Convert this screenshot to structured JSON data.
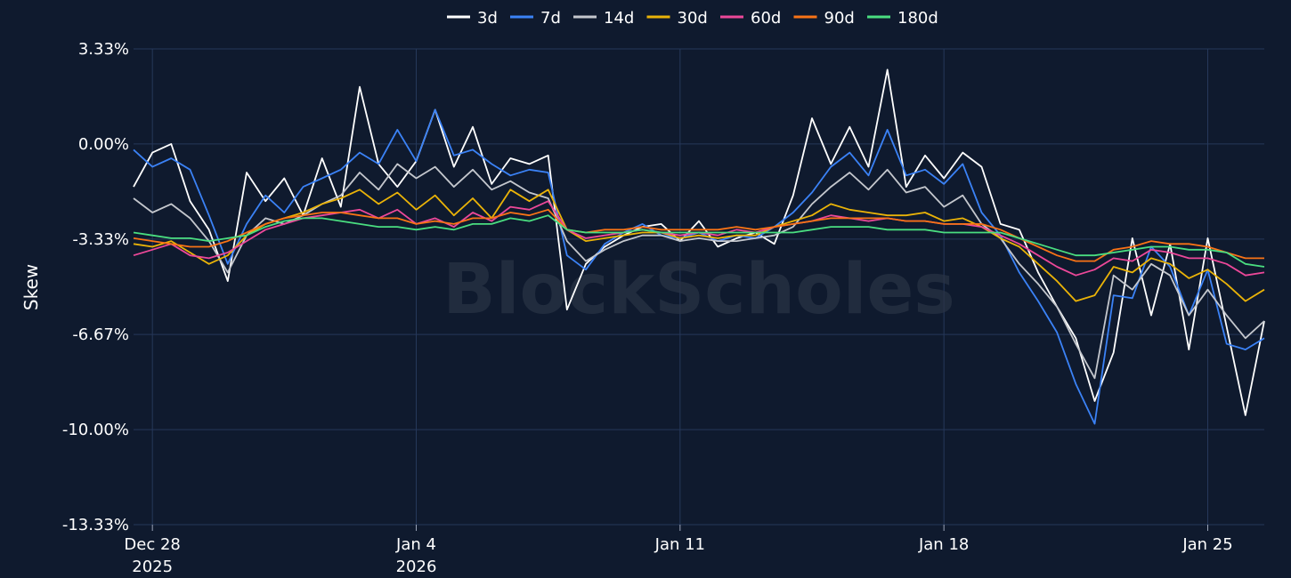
{
  "chart_data": {
    "type": "line",
    "title": "",
    "ylabel": "Skew",
    "xlabel": "",
    "watermark": "BlockScholes",
    "legend_position": "top-center",
    "grid": true,
    "ylim": [
      -13.33,
      3.33
    ],
    "y_ticks": [
      {
        "value": 3.33,
        "label": "3.33%"
      },
      {
        "value": 0,
        "label": "0.00%"
      },
      {
        "value": -3.33,
        "label": "-3.33%"
      },
      {
        "value": -6.67,
        "label": "-6.67%"
      },
      {
        "value": -10,
        "label": "-10.00%"
      },
      {
        "value": -13.33,
        "label": "-13.33%"
      }
    ],
    "xlim": [
      "2025-12-27T12:00",
      "2026-01-26T12:00"
    ],
    "x_ticks": [
      {
        "date": "2025-12-28",
        "label": "Dec 28",
        "sublabel": "2025"
      },
      {
        "date": "2026-01-04",
        "label": "Jan 4",
        "sublabel": "2026"
      },
      {
        "date": "2026-01-11",
        "label": "Jan 11",
        "sublabel": ""
      },
      {
        "date": "2026-01-18",
        "label": "Jan 18",
        "sublabel": ""
      },
      {
        "date": "2026-01-25",
        "label": "Jan 25",
        "sublabel": ""
      }
    ],
    "x": [
      "2025-12-27T12:00",
      "2025-12-28T00:00",
      "2025-12-28T12:00",
      "2025-12-29T00:00",
      "2025-12-29T12:00",
      "2025-12-30T00:00",
      "2025-12-30T12:00",
      "2025-12-31T00:00",
      "2025-12-31T12:00",
      "2026-01-01T00:00",
      "2026-01-01T12:00",
      "2026-01-02T00:00",
      "2026-01-02T12:00",
      "2026-01-03T00:00",
      "2026-01-03T12:00",
      "2026-01-04T00:00",
      "2026-01-04T12:00",
      "2026-01-05T00:00",
      "2026-01-05T12:00",
      "2026-01-06T00:00",
      "2026-01-06T12:00",
      "2026-01-07T00:00",
      "2026-01-07T12:00",
      "2026-01-08T00:00",
      "2026-01-08T12:00",
      "2026-01-09T00:00",
      "2026-01-09T12:00",
      "2026-01-10T00:00",
      "2026-01-10T12:00",
      "2026-01-11T00:00",
      "2026-01-11T12:00",
      "2026-01-12T00:00",
      "2026-01-12T12:00",
      "2026-01-13T00:00",
      "2026-01-13T12:00",
      "2026-01-14T00:00",
      "2026-01-14T12:00",
      "2026-01-15T00:00",
      "2026-01-15T12:00",
      "2026-01-16T00:00",
      "2026-01-16T12:00",
      "2026-01-17T00:00",
      "2026-01-17T12:00",
      "2026-01-18T00:00",
      "2026-01-18T12:00",
      "2026-01-19T00:00",
      "2026-01-19T12:00",
      "2026-01-20T00:00",
      "2026-01-20T12:00",
      "2026-01-21T00:00",
      "2026-01-21T12:00",
      "2026-01-22T00:00",
      "2026-01-22T12:00",
      "2026-01-23T00:00",
      "2026-01-23T12:00",
      "2026-01-24T00:00",
      "2026-01-24T12:00",
      "2026-01-25T00:00",
      "2026-01-25T12:00",
      "2026-01-26T00:00",
      "2026-01-26T12:00"
    ],
    "series": [
      {
        "name": "3d",
        "color": "#ffffff",
        "values": [
          -1.5,
          -0.3,
          0,
          -2,
          -3,
          -4.8,
          -1,
          -2,
          -1.2,
          -2.5,
          -0.5,
          -2.2,
          2,
          -0.7,
          -1.5,
          -0.6,
          1.2,
          -0.8,
          0.6,
          -1.4,
          -0.5,
          -0.7,
          -0.4,
          -5.8,
          -4.2,
          -3.6,
          -3.2,
          -2.9,
          -2.8,
          -3.4,
          -2.7,
          -3.6,
          -3.3,
          -3.1,
          -3.5,
          -1.8,
          0.9,
          -0.7,
          0.6,
          -0.8,
          2.6,
          -1.5,
          -0.4,
          -1.2,
          -0.3,
          -0.8,
          -2.8,
          -3,
          -4.5,
          -5.7,
          -6.8,
          -9,
          -7.3,
          -3.3,
          -6,
          -3.5,
          -7.2,
          -3.3,
          -6.4,
          -9.5,
          -6.2
        ]
      },
      {
        "name": "7d",
        "color": "#3b82f6",
        "values": [
          -0.2,
          -0.8,
          -0.5,
          -0.9,
          -2.5,
          -4.2,
          -2.8,
          -1.8,
          -2.4,
          -1.5,
          -1.2,
          -0.9,
          -0.3,
          -0.7,
          0.5,
          -0.6,
          1.2,
          -0.4,
          -0.2,
          -0.7,
          -1.1,
          -0.9,
          -1,
          -3.9,
          -4.4,
          -3.5,
          -3.1,
          -2.8,
          -3.2,
          -3.3,
          -3.1,
          -3.4,
          -3.2,
          -3.3,
          -2.9,
          -2.4,
          -1.7,
          -0.8,
          -0.3,
          -1.1,
          0.5,
          -1.1,
          -0.9,
          -1.4,
          -0.7,
          -2.4,
          -3.2,
          -4.5,
          -5.5,
          -6.6,
          -8.4,
          -9.8,
          -5.3,
          -5.4,
          -3.6,
          -4.3,
          -6,
          -4.4,
          -7,
          -7.2,
          -6.8
        ]
      },
      {
        "name": "14d",
        "color": "#c4c7cd",
        "values": [
          -1.9,
          -2.4,
          -2.1,
          -2.6,
          -3.4,
          -4.5,
          -3.2,
          -2.6,
          -2.8,
          -2.5,
          -2.1,
          -1.8,
          -1,
          -1.6,
          -0.7,
          -1.2,
          -0.8,
          -1.5,
          -0.9,
          -1.6,
          -1.3,
          -1.7,
          -1.9,
          -3.4,
          -4.1,
          -3.7,
          -3.4,
          -3.2,
          -3.2,
          -3.4,
          -3.3,
          -3.4,
          -3.4,
          -3.3,
          -3.2,
          -2.9,
          -2.1,
          -1.5,
          -1,
          -1.6,
          -0.9,
          -1.7,
          -1.5,
          -2.2,
          -1.8,
          -2.8,
          -3.3,
          -4.2,
          -4.9,
          -5.7,
          -7,
          -8.2,
          -4.6,
          -5.1,
          -4.2,
          -4.6,
          -6,
          -5.1,
          -6,
          -6.8,
          -6.2
        ]
      },
      {
        "name": "30d",
        "color": "#eab308",
        "values": [
          -3.5,
          -3.6,
          -3.4,
          -3.8,
          -4.2,
          -3.9,
          -3.2,
          -2.8,
          -2.6,
          -2.4,
          -2.1,
          -1.9,
          -1.6,
          -2.1,
          -1.7,
          -2.3,
          -1.8,
          -2.5,
          -1.9,
          -2.6,
          -1.6,
          -2,
          -1.6,
          -3,
          -3.4,
          -3.3,
          -3.2,
          -3.1,
          -3.1,
          -3.3,
          -3.2,
          -3.3,
          -3.2,
          -3.2,
          -2.9,
          -2.7,
          -2.5,
          -2.1,
          -2.3,
          -2.4,
          -2.5,
          -2.5,
          -2.4,
          -2.7,
          -2.6,
          -2.9,
          -3.3,
          -3.6,
          -4.2,
          -4.8,
          -5.5,
          -5.3,
          -4.3,
          -4.5,
          -4,
          -4.2,
          -4.7,
          -4.4,
          -4.9,
          -5.5,
          -5.1
        ]
      },
      {
        "name": "60d",
        "color": "#ec4899",
        "values": [
          -3.9,
          -3.7,
          -3.5,
          -3.9,
          -4,
          -3.8,
          -3.4,
          -3,
          -2.8,
          -2.6,
          -2.5,
          -2.4,
          -2.3,
          -2.6,
          -2.3,
          -2.8,
          -2.6,
          -2.9,
          -2.4,
          -2.7,
          -2.2,
          -2.3,
          -2,
          -3,
          -3.3,
          -3.2,
          -3.1,
          -3,
          -3.1,
          -3.2,
          -3.1,
          -3.2,
          -3,
          -3.1,
          -2.9,
          -2.8,
          -2.7,
          -2.5,
          -2.6,
          -2.7,
          -2.6,
          -2.7,
          -2.7,
          -2.8,
          -2.8,
          -2.9,
          -3.2,
          -3.5,
          -3.9,
          -4.3,
          -4.6,
          -4.4,
          -4,
          -4.1,
          -3.7,
          -3.8,
          -4,
          -4,
          -4.2,
          -4.6,
          -4.5
        ]
      },
      {
        "name": "90d",
        "color": "#f97316",
        "values": [
          -3.3,
          -3.4,
          -3.5,
          -3.6,
          -3.6,
          -3.4,
          -3.1,
          -2.8,
          -2.6,
          -2.5,
          -2.4,
          -2.4,
          -2.5,
          -2.6,
          -2.6,
          -2.8,
          -2.7,
          -2.8,
          -2.6,
          -2.6,
          -2.4,
          -2.5,
          -2.3,
          -3,
          -3.1,
          -3,
          -3,
          -2.9,
          -3,
          -3,
          -3,
          -3,
          -2.9,
          -3,
          -2.9,
          -2.8,
          -2.7,
          -2.6,
          -2.6,
          -2.6,
          -2.6,
          -2.7,
          -2.7,
          -2.8,
          -2.8,
          -2.8,
          -3,
          -3.3,
          -3.6,
          -3.9,
          -4.1,
          -4.1,
          -3.7,
          -3.6,
          -3.4,
          -3.5,
          -3.5,
          -3.6,
          -3.8,
          -4,
          -4
        ]
      },
      {
        "name": "180d",
        "color": "#4ade80",
        "values": [
          -3.1,
          -3.2,
          -3.3,
          -3.3,
          -3.4,
          -3.3,
          -3.2,
          -2.9,
          -2.7,
          -2.6,
          -2.6,
          -2.7,
          -2.8,
          -2.9,
          -2.9,
          -3,
          -2.9,
          -3,
          -2.8,
          -2.8,
          -2.6,
          -2.7,
          -2.5,
          -3,
          -3.1,
          -3.1,
          -3.1,
          -3,
          -3.1,
          -3.1,
          -3.1,
          -3.1,
          -3.1,
          -3.1,
          -3.1,
          -3.1,
          -3,
          -2.9,
          -2.9,
          -2.9,
          -3,
          -3,
          -3,
          -3.1,
          -3.1,
          -3.1,
          -3.1,
          -3.3,
          -3.5,
          -3.7,
          -3.9,
          -3.9,
          -3.8,
          -3.7,
          -3.6,
          -3.6,
          -3.7,
          -3.7,
          -3.8,
          -4.2,
          -4.3
        ]
      }
    ]
  }
}
